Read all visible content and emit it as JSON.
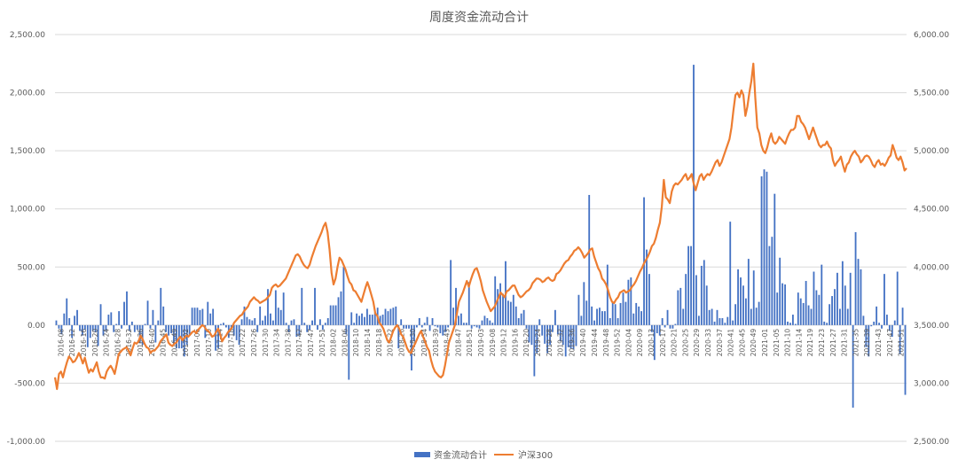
{
  "chart_data": {
    "type": "bar+line",
    "title": "周度资金流动合计",
    "left_axis": {
      "min": -1000,
      "max": 2500,
      "step": 500,
      "tick_labels": [
        "-1,000.00",
        "-500.00",
        "0.00",
        "500.00",
        "1,000.00",
        "1,500.00",
        "2,000.00",
        "2,500.00"
      ]
    },
    "right_axis": {
      "min": 2500,
      "max": 6000,
      "step": 500,
      "tick_labels": [
        "2,500.00",
        "3,000.00",
        "3,500.00",
        "4,000.00",
        "4,500.00",
        "5,000.00",
        "5,500.00",
        "6,000.00"
      ]
    },
    "grid": true,
    "legend_position": "bottom",
    "category_labels": [
      "2016-08",
      "2016-12",
      "2016-16",
      "2016-20",
      "2016-24",
      "2016-28",
      "2016-32",
      "2016-36",
      "2016-40",
      "2016-45",
      "2016-49",
      "2017-02",
      "2017-06",
      "2017-10",
      "2017-14",
      "2017-18",
      "2017-22",
      "2017-26",
      "2017-30",
      "2017-34",
      "2017-38",
      "2017-42",
      "2017-47",
      "2017-51",
      "2018-02",
      "2018-06",
      "2018-10",
      "2018-14",
      "2018-18",
      "2018-22",
      "2018-26",
      "2018-30",
      "2018-34",
      "2018-39",
      "2018-43",
      "2018-47",
      "2018-51",
      "2019-03",
      "2019-08",
      "2019-12",
      "2019-16",
      "2019-20",
      "2019-24",
      "2019-28",
      "2019-32",
      "2019-36",
      "2019-40",
      "2019-44",
      "2019-48",
      "2019-52",
      "2020-04",
      "2020-09",
      "2020-13",
      "2020-17",
      "2020-21",
      "2020-25",
      "2020-29",
      "2020-33",
      "2020-37",
      "2020-41",
      "2020-45",
      "2020-49",
      "2021-01",
      "2021-05",
      "2021-10",
      "2021-14",
      "2021-19",
      "2021-23",
      "2021-27",
      "2021-31",
      "2021-35",
      "2021-39",
      "2021-43",
      "2021-47",
      "2021-51"
    ],
    "series": [
      {
        "name": "资金流动合计",
        "type": "bar",
        "color": "#4472C4",
        "axis": "left",
        "values": [
          40,
          -30,
          -80,
          100,
          230,
          60,
          -110,
          80,
          130,
          -50,
          -90,
          -40,
          -190,
          -110,
          -50,
          -60,
          -180,
          180,
          -90,
          -50,
          90,
          110,
          -60,
          10,
          120,
          -30,
          200,
          290,
          -50,
          30,
          -60,
          -40,
          -150,
          -170,
          10,
          210,
          -30,
          130,
          -150,
          40,
          320,
          160,
          -60,
          -90,
          -70,
          -170,
          -200,
          -200,
          -200,
          -270,
          -170,
          -90,
          150,
          150,
          150,
          130,
          140,
          -110,
          200,
          100,
          140,
          -220,
          -200,
          10,
          20,
          -20,
          -110,
          -30,
          -90,
          -130,
          -170,
          50,
          160,
          70,
          50,
          40,
          60,
          -60,
          160,
          40,
          80,
          310,
          100,
          40,
          300,
          150,
          130,
          280,
          20,
          -60,
          40,
          50,
          -100,
          -90,
          320,
          20,
          -60,
          -40,
          40,
          320,
          -40,
          50,
          -40,
          20,
          60,
          170,
          170,
          170,
          240,
          290,
          500,
          -80,
          -470,
          110,
          20,
          100,
          80,
          100,
          70,
          140,
          90,
          90,
          110,
          150,
          80,
          90,
          140,
          120,
          140,
          150,
          160,
          -200,
          50,
          -30,
          -30,
          -30,
          -390,
          -140,
          -20,
          60,
          -20,
          20,
          70,
          -50,
          60,
          -10,
          -20,
          -70,
          -90,
          -60,
          -20,
          560,
          150,
          320,
          80,
          100,
          20,
          20,
          370,
          -30,
          -10,
          -20,
          -30,
          40,
          80,
          60,
          40,
          20,
          420,
          310,
          360,
          270,
          550,
          210,
          200,
          260,
          160,
          60,
          100,
          130,
          -30,
          -150,
          -170,
          -440,
          -240,
          50,
          -90,
          -160,
          -240,
          -170,
          -60,
          130,
          -80,
          -140,
          -170,
          -270,
          -190,
          -200,
          -210,
          -180,
          260,
          80,
          370,
          210,
          1120,
          160,
          40,
          140,
          150,
          120,
          120,
          520,
          60,
          190,
          180,
          60,
          190,
          280,
          200,
          390,
          410,
          100,
          190,
          160,
          120,
          1100,
          650,
          440,
          -60,
          -300,
          -70,
          -90,
          60,
          -20,
          130,
          -30,
          -30,
          10,
          300,
          320,
          140,
          440,
          680,
          680,
          2240,
          430,
          80,
          510,
          560,
          340,
          130,
          140,
          30,
          130,
          60,
          60,
          20,
          70,
          890,
          40,
          180,
          480,
          410,
          340,
          230,
          570,
          140,
          470,
          150,
          200,
          1280,
          1340,
          1320,
          680,
          760,
          1130,
          280,
          580,
          360,
          350,
          30,
          20,
          90,
          10,
          280,
          230,
          190,
          380,
          170,
          140,
          460,
          300,
          260,
          520,
          30,
          20,
          180,
          250,
          310,
          450,
          140,
          550,
          340,
          140,
          450,
          -710,
          800,
          570,
          480,
          80,
          -190,
          -270,
          -10,
          30,
          160,
          20,
          -30,
          440,
          90,
          -50,
          -100,
          40,
          460,
          -250,
          150,
          -600
        ]
      },
      {
        "name": "沪深300",
        "type": "line",
        "color": "#ED7D31",
        "axis": "right",
        "values": [
          3050,
          2950,
          3080,
          3100,
          3050,
          3120,
          3180,
          3230,
          3210,
          3180,
          3190,
          3220,
          3260,
          3220,
          3170,
          3220,
          3150,
          3090,
          3120,
          3100,
          3140,
          3180,
          3100,
          3050,
          3050,
          3040,
          3100,
          3130,
          3150,
          3120,
          3080,
          3160,
          3250,
          3270,
          3290,
          3300,
          3310,
          3280,
          3240,
          3300,
          3350,
          3340,
          3360,
          3410,
          3380,
          3340,
          3310,
          3300,
          3260,
          3280,
          3280,
          3300,
          3320,
          3360,
          3380,
          3400,
          3420,
          3350,
          3330,
          3320,
          3340,
          3350,
          3380,
          3400,
          3370,
          3390,
          3410,
          3400,
          3420,
          3440,
          3450,
          3430,
          3460,
          3480,
          3500,
          3490,
          3460,
          3450,
          3430,
          3400,
          3410,
          3440,
          3470,
          3420,
          3360,
          3390,
          3410,
          3440,
          3460,
          3480,
          3520,
          3540,
          3560,
          3580,
          3590,
          3620,
          3640,
          3660,
          3700,
          3720,
          3740,
          3720,
          3710,
          3690,
          3700,
          3710,
          3720,
          3740,
          3760,
          3820,
          3840,
          3850,
          3830,
          3840,
          3860,
          3880,
          3900,
          3940,
          3980,
          4020,
          4060,
          4100,
          4110,
          4090,
          4050,
          4020,
          4000,
          3990,
          4020,
          4080,
          4130,
          4180,
          4220,
          4260,
          4300,
          4350,
          4380,
          4300,
          4150,
          3950,
          3850,
          3900,
          4000,
          4080,
          4060,
          4020,
          3980,
          3920,
          3870,
          3850,
          3800,
          3790,
          3760,
          3730,
          3700,
          3760,
          3820,
          3870,
          3820,
          3760,
          3700,
          3600,
          3580,
          3520,
          3500,
          3470,
          3420,
          3370,
          3350,
          3400,
          3450,
          3480,
          3500,
          3470,
          3420,
          3400,
          3350,
          3300,
          3270,
          3260,
          3310,
          3340,
          3380,
          3420,
          3450,
          3400,
          3360,
          3310,
          3280,
          3200,
          3140,
          3100,
          3080,
          3060,
          3050,
          3070,
          3150,
          3250,
          3350,
          3400,
          3450,
          3500,
          3600,
          3700,
          3740,
          3780,
          3830,
          3880,
          3830,
          3890,
          3940,
          3980,
          3990,
          3940,
          3880,
          3800,
          3750,
          3700,
          3660,
          3620,
          3640,
          3660,
          3700,
          3740,
          3780,
          3760,
          3740,
          3790,
          3800,
          3820,
          3840,
          3840,
          3800,
          3760,
          3740,
          3750,
          3770,
          3790,
          3800,
          3820,
          3860,
          3880,
          3900,
          3900,
          3890,
          3870,
          3880,
          3900,
          3910,
          3890,
          3880,
          3890,
          3940,
          3950,
          3970,
          4000,
          4030,
          4050,
          4060,
          4090,
          4110,
          4140,
          4150,
          4170,
          4150,
          4120,
          4080,
          4100,
          4120,
          4150,
          4160,
          4090,
          4040,
          3990,
          3960,
          3900,
          3880,
          3850,
          3800,
          3740,
          3700,
          3690,
          3720,
          3740,
          3780,
          3790,
          3800,
          3780,
          3790,
          3800,
          3830,
          3850,
          3880,
          3920,
          3960,
          3990,
          4030,
          4060,
          4090,
          4130,
          4180,
          4200,
          4250,
          4320,
          4380,
          4520,
          4750,
          4600,
          4580,
          4550,
          4650,
          4700,
          4720,
          4710,
          4730,
          4750,
          4780,
          4800,
          4750,
          4770,
          4800,
          4720,
          4660,
          4720,
          4780,
          4800,
          4750,
          4780,
          4800,
          4790,
          4820,
          4860,
          4900,
          4920,
          4870,
          4900,
          4950,
          5000,
          5050,
          5100,
          5200,
          5350,
          5480,
          5500,
          5460,
          5520,
          5480,
          5300,
          5380,
          5500,
          5600,
          5750,
          5450,
          5200,
          5150,
          5050,
          5000,
          4980,
          5030,
          5100,
          5150,
          5080,
          5060,
          5080,
          5120,
          5100,
          5080,
          5060,
          5110,
          5150,
          5180,
          5180,
          5200,
          5300,
          5300,
          5250,
          5230,
          5200,
          5150,
          5100,
          5150,
          5200,
          5150,
          5100,
          5050,
          5030,
          5050,
          5050,
          5080,
          5040,
          5020,
          4920,
          4870,
          4900,
          4920,
          4950,
          4880,
          4820,
          4880,
          4900,
          4950,
          4980,
          5000,
          4970,
          4950,
          4900,
          4920,
          4950,
          4960,
          4950,
          4920,
          4880,
          4860,
          4900,
          4920,
          4880,
          4890,
          4870,
          4900,
          4940,
          4960,
          5050,
          5000,
          4940,
          4920,
          4950,
          4900,
          4830,
          4850
        ]
      }
    ]
  }
}
